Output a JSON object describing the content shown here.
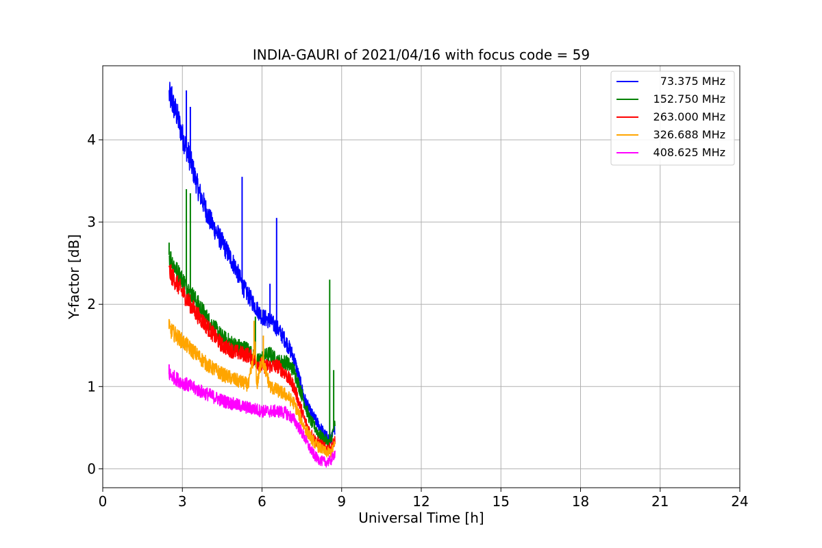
{
  "chart_data": {
    "type": "line",
    "title": "INDIA-GAURI of 2021/04/16 with focus code = 59",
    "xlabel": "Universal Time [h]",
    "ylabel": "Y-factor [dB]",
    "xlim": [
      0,
      24
    ],
    "ylim": [
      -0.23,
      4.9
    ],
    "xticks": [
      0,
      3,
      6,
      9,
      12,
      15,
      18,
      21,
      24
    ],
    "yticks": [
      0,
      1,
      2,
      3,
      4
    ],
    "grid": true,
    "legend_position": "top-right",
    "series": [
      {
        "name": "73.375 MHz",
        "color": "#0000ff",
        "x": [
          2.5,
          2.8,
          3.0,
          3.3,
          3.6,
          4.0,
          4.5,
          5.0,
          5.3,
          5.6,
          5.8,
          6.0,
          6.3,
          6.6,
          6.9,
          7.2,
          7.4,
          7.6,
          7.8,
          8.0,
          8.2,
          8.4,
          8.6,
          8.75
        ],
        "y": [
          4.55,
          4.3,
          4.05,
          3.75,
          3.4,
          3.05,
          2.75,
          2.45,
          2.2,
          2.05,
          1.95,
          1.85,
          1.8,
          1.7,
          1.55,
          1.35,
          1.1,
          0.85,
          0.7,
          0.6,
          0.5,
          0.4,
          0.35,
          0.5
        ],
        "spikes": [
          [
            2.6,
            4.65
          ],
          [
            3.15,
            4.6
          ],
          [
            3.3,
            4.4
          ],
          [
            5.25,
            3.55
          ],
          [
            6.55,
            3.05
          ],
          [
            6.3,
            2.25
          ]
        ]
      },
      {
        "name": "152.750 MHz",
        "color": "#008000",
        "x": [
          2.5,
          2.8,
          3.0,
          3.5,
          4.0,
          4.5,
          5.0,
          5.5,
          5.8,
          6.0,
          6.3,
          6.6,
          6.9,
          7.2,
          7.4,
          7.6,
          7.8,
          8.0,
          8.2,
          8.4,
          8.55,
          8.75
        ],
        "y": [
          2.6,
          2.4,
          2.3,
          2.05,
          1.8,
          1.6,
          1.5,
          1.45,
          1.3,
          1.35,
          1.4,
          1.3,
          1.3,
          1.2,
          1.0,
          0.8,
          0.6,
          0.5,
          0.4,
          0.35,
          0.3,
          0.55
        ],
        "spikes": [
          [
            2.5,
            2.75
          ],
          [
            3.15,
            3.4
          ],
          [
            3.3,
            3.35
          ],
          [
            5.75,
            1.85
          ],
          [
            8.55,
            2.3
          ],
          [
            8.7,
            1.2
          ]
        ]
      },
      {
        "name": "263.000 MHz",
        "color": "#ff0000",
        "x": [
          2.5,
          3.0,
          3.5,
          4.0,
          4.5,
          5.0,
          5.5,
          5.8,
          6.0,
          6.3,
          6.6,
          6.9,
          7.2,
          7.4,
          7.6,
          7.8,
          8.0,
          8.2,
          8.4,
          8.6,
          8.75
        ],
        "y": [
          2.4,
          2.15,
          1.9,
          1.7,
          1.5,
          1.42,
          1.38,
          1.3,
          1.25,
          1.25,
          1.25,
          1.15,
          1.0,
          0.8,
          0.6,
          0.45,
          0.35,
          0.3,
          0.25,
          0.25,
          0.35
        ],
        "spikes": []
      },
      {
        "name": "326.688 MHz",
        "color": "#ffa500",
        "x": [
          2.5,
          3.0,
          3.5,
          4.0,
          4.5,
          5.0,
          5.5,
          5.75,
          5.8,
          6.0,
          6.3,
          6.6,
          6.9,
          7.2,
          7.4,
          7.6,
          7.8,
          8.0,
          8.2,
          8.4,
          8.6,
          8.75
        ],
        "y": [
          1.7,
          1.55,
          1.4,
          1.25,
          1.15,
          1.08,
          1.02,
          1.5,
          1.0,
          1.35,
          1.0,
          0.95,
          0.9,
          0.8,
          0.65,
          0.5,
          0.4,
          0.3,
          0.25,
          0.2,
          0.2,
          0.3
        ],
        "spikes": [
          [
            2.5,
            1.82
          ],
          [
            5.7,
            1.8
          ],
          [
            6.05,
            1.62
          ]
        ]
      },
      {
        "name": "408.625 MHz",
        "color": "#ff00ff",
        "x": [
          2.5,
          3.0,
          3.5,
          4.0,
          4.5,
          5.0,
          5.5,
          5.8,
          6.0,
          6.3,
          6.6,
          6.9,
          7.2,
          7.4,
          7.6,
          7.8,
          8.0,
          8.2,
          8.4,
          8.6,
          8.75
        ],
        "y": [
          1.15,
          1.05,
          0.97,
          0.9,
          0.83,
          0.78,
          0.74,
          0.72,
          0.7,
          0.7,
          0.7,
          0.68,
          0.6,
          0.5,
          0.38,
          0.25,
          0.15,
          0.1,
          0.08,
          0.1,
          0.2
        ],
        "spikes": [
          [
            2.5,
            1.27
          ]
        ]
      }
    ]
  }
}
